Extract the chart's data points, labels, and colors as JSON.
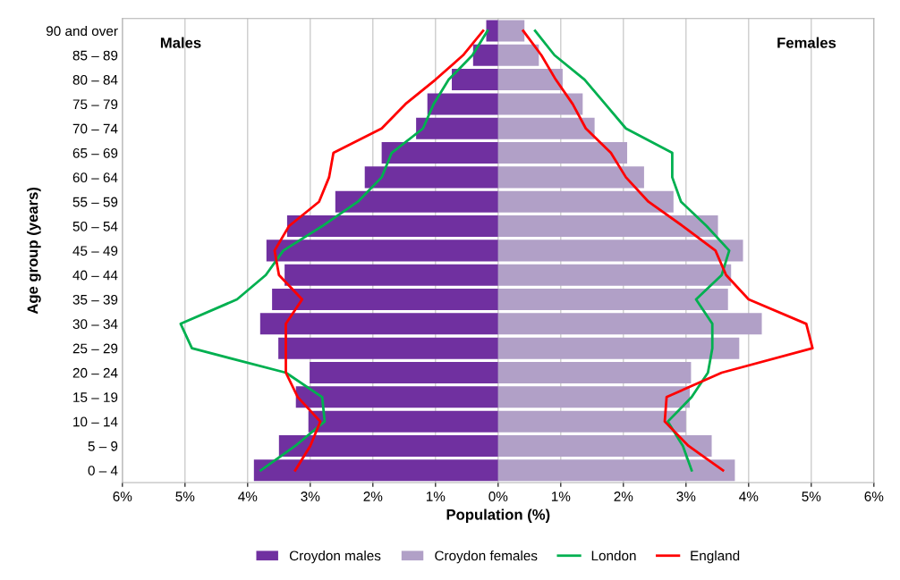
{
  "chart_data": {
    "type": "bar",
    "orientation": "horizontal",
    "xlabel": "Population (%)",
    "ylabel": "Age group (years)",
    "categories": [
      "90 and over",
      "85 – 89",
      "80 – 84",
      "75 – 79",
      "70 – 74",
      "65 – 69",
      "60 – 64",
      "55 – 59",
      "50 – 54",
      "45 – 49",
      "40 – 44",
      "35 – 39",
      "30 – 34",
      "25 – 29",
      "20 – 24",
      "15 – 19",
      "10 – 14",
      "5 – 9",
      "0 – 4"
    ],
    "series": [
      {
        "name": "Croydon males",
        "color": "#7030a0",
        "values": [
          -0.19,
          -0.4,
          -0.74,
          -1.13,
          -1.31,
          -1.86,
          -2.13,
          -2.6,
          -3.37,
          -3.7,
          -3.41,
          -3.61,
          -3.8,
          -3.51,
          -3.01,
          -3.23,
          -3.03,
          -3.5,
          -3.9
        ]
      },
      {
        "name": "Croydon females",
        "color": "#b1a0c7",
        "values": [
          0.42,
          0.65,
          1.03,
          1.35,
          1.54,
          2.06,
          2.33,
          2.8,
          3.51,
          3.91,
          3.72,
          3.67,
          4.21,
          3.85,
          3.08,
          3.06,
          3.0,
          3.41,
          3.78
        ]
      },
      {
        "name": "London",
        "type": "line",
        "color": "#00b050",
        "values": [
          0.59,
          0.9,
          1.38,
          1.71,
          2.04,
          2.78,
          2.78,
          2.92,
          3.33,
          3.69,
          3.57,
          3.16,
          3.42,
          3.42,
          3.35,
          3.09,
          2.71,
          2.95,
          3.09
        ]
      },
      {
        "type": "line",
        "color": "#00b050",
        "values": [
          -0.17,
          -0.41,
          -0.79,
          -1.03,
          -1.2,
          -1.7,
          -1.86,
          -2.24,
          -2.81,
          -3.43,
          -3.71,
          -4.17,
          -5.07,
          -4.89,
          -3.39,
          -2.81,
          -2.77,
          -3.24,
          -3.79
        ]
      },
      {
        "name": "England",
        "type": "line",
        "color": "#ff0000",
        "values": [
          0.4,
          0.69,
          0.92,
          1.19,
          1.4,
          1.8,
          2.04,
          2.4,
          2.95,
          3.47,
          3.64,
          4.0,
          4.92,
          5.02,
          3.57,
          2.69,
          2.66,
          3.04,
          3.59
        ]
      },
      {
        "type": "line",
        "color": "#ff0000",
        "values": [
          -0.24,
          -0.56,
          -1.0,
          -1.48,
          -1.86,
          -2.63,
          -2.7,
          -2.86,
          -3.34,
          -3.57,
          -3.5,
          -3.13,
          -3.39,
          -3.39,
          -3.39,
          -3.2,
          -2.84,
          -3.0,
          -3.24
        ]
      }
    ],
    "xlim": [
      -6,
      6
    ],
    "xticks": [
      {
        "value": -6,
        "label": "6%"
      },
      {
        "value": -5,
        "label": "5%"
      },
      {
        "value": -4,
        "label": "4%"
      },
      {
        "value": -3,
        "label": "3%"
      },
      {
        "value": -2,
        "label": "2%"
      },
      {
        "value": -1,
        "label": "1%"
      },
      {
        "value": 0,
        "label": "0%"
      },
      {
        "value": 1,
        "label": "1%"
      },
      {
        "value": 2,
        "label": "2%"
      },
      {
        "value": 3,
        "label": "3%"
      },
      {
        "value": 4,
        "label": "4%"
      },
      {
        "value": 5,
        "label": "5%"
      },
      {
        "value": 6,
        "label": "6%"
      }
    ],
    "stacked": true,
    "grid": "x",
    "legend": "bottom",
    "marker": "none",
    "line_style": "solid",
    "annotations": [
      "Males",
      "Females"
    ]
  }
}
